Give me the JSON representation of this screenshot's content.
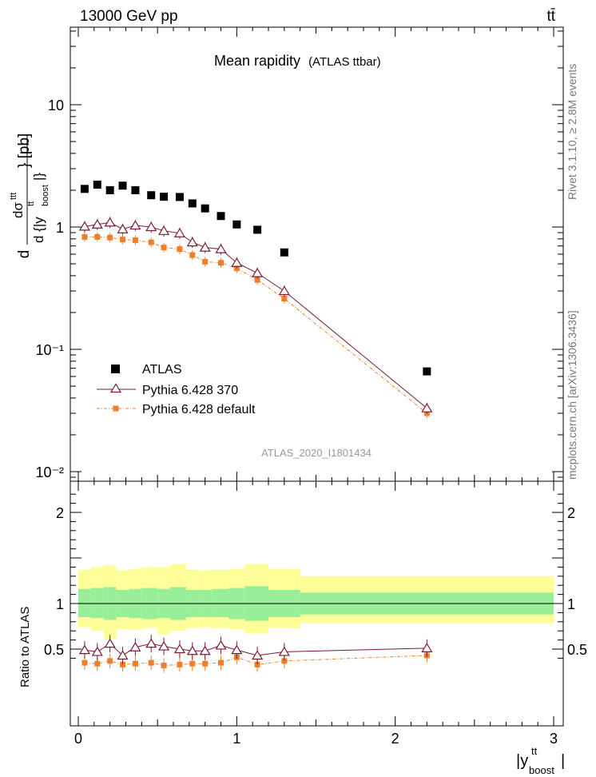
{
  "header": {
    "left": "13000 GeV pp",
    "right": "tt̄"
  },
  "side": {
    "rivet": "Rivet 3.1.10, ≥ 2.8M events",
    "mcplots": "mcplots.cern.ch [arXiv:1306.3436]"
  },
  "main": {
    "title": "Mean rapidity",
    "title_sub": "(ATLAS ttbar)",
    "ylabel": "d dσ^ttt / d{|y_boost^tt|} [pb]",
    "watermark": "ATLAS_2020_I1801434"
  },
  "ratio": {
    "ylabel": "Ratio to ATLAS"
  },
  "xlabel": "|y_boost^tt|",
  "legend": {
    "atlas": "ATLAS",
    "p370": "Pythia 6.428 370",
    "pdef": "Pythia 6.428 default"
  },
  "colors": {
    "data": "#000000",
    "p370": "#7a1b2e",
    "pdef": "#f07f2a",
    "band_inner": "#99ee99",
    "band_outer": "#ffff99"
  },
  "chart_data": {
    "type": "scatter",
    "xlim": [
      0,
      3
    ],
    "ylim_main": [
      0.008,
      50
    ],
    "yscale_main": "log",
    "ylim_ratio": [
      0.35,
      2.3
    ],
    "x_ticks": [
      "0",
      "1",
      "2",
      "3"
    ],
    "y_ticks_main": [
      "10⁻²",
      "10⁻¹",
      "1",
      "10"
    ],
    "y_ticks_ratio": [
      "0.5",
      "1",
      "2"
    ],
    "bins": [
      [
        0.0,
        0.08
      ],
      [
        0.08,
        0.16
      ],
      [
        0.16,
        0.24
      ],
      [
        0.24,
        0.32
      ],
      [
        0.32,
        0.4
      ],
      [
        0.4,
        0.5
      ],
      [
        0.5,
        0.58
      ],
      [
        0.58,
        0.68
      ],
      [
        0.68,
        0.76
      ],
      [
        0.76,
        0.84
      ],
      [
        0.84,
        0.95
      ],
      [
        0.95,
        1.05
      ],
      [
        1.05,
        1.2
      ],
      [
        1.2,
        1.4
      ],
      [
        1.4,
        3.0
      ]
    ],
    "x": [
      0.04,
      0.12,
      0.2,
      0.28,
      0.36,
      0.46,
      0.54,
      0.64,
      0.72,
      0.8,
      0.9,
      1.0,
      1.13,
      1.3,
      2.2
    ],
    "series": [
      {
        "name": "ATLAS",
        "values": [
          2.05,
          2.22,
          2.0,
          2.18,
          2.0,
          1.82,
          1.77,
          1.76,
          1.56,
          1.42,
          1.23,
          1.05,
          0.95,
          0.62,
          0.066
        ]
      },
      {
        "name": "Pythia 6.428 370",
        "values": [
          1.01,
          1.05,
          1.09,
          0.96,
          1.03,
          1.0,
          0.93,
          0.89,
          0.75,
          0.68,
          0.66,
          0.51,
          0.42,
          0.3,
          0.033
        ]
      },
      {
        "name": "Pythia 6.428 default",
        "values": [
          0.83,
          0.83,
          0.82,
          0.79,
          0.78,
          0.75,
          0.68,
          0.66,
          0.59,
          0.52,
          0.51,
          0.46,
          0.37,
          0.26,
          0.03
        ]
      }
    ],
    "ratio_series": [
      {
        "name": "Pythia 6.428 370",
        "values": [
          0.49,
          0.47,
          0.56,
          0.43,
          0.52,
          0.56,
          0.53,
          0.5,
          0.48,
          0.48,
          0.54,
          0.49,
          0.43,
          0.47,
          0.51
        ]
      },
      {
        "name": "Pythia 6.428 default",
        "values": [
          0.35,
          0.34,
          0.37,
          0.33,
          0.34,
          0.35,
          0.32,
          0.33,
          0.34,
          0.34,
          0.35,
          0.41,
          0.33,
          0.37,
          0.43
        ]
      }
    ],
    "ratio_band_inner": [
      [
        0.85,
        1.16
      ],
      [
        0.84,
        1.17
      ],
      [
        0.82,
        1.18
      ],
      [
        0.85,
        1.15
      ],
      [
        0.84,
        1.16
      ],
      [
        0.83,
        1.17
      ],
      [
        0.84,
        1.16
      ],
      [
        0.82,
        1.18
      ],
      [
        0.85,
        1.15
      ],
      [
        0.85,
        1.15
      ],
      [
        0.85,
        1.16
      ],
      [
        0.83,
        1.17
      ],
      [
        0.81,
        1.19
      ],
      [
        0.85,
        1.15
      ],
      [
        0.88,
        1.12
      ]
    ],
    "ratio_band_outer": [
      [
        0.74,
        1.37
      ],
      [
        0.7,
        1.4
      ],
      [
        0.61,
        1.42
      ],
      [
        0.72,
        1.36
      ],
      [
        0.71,
        1.38
      ],
      [
        0.73,
        1.4
      ],
      [
        0.66,
        1.4
      ],
      [
        0.7,
        1.43
      ],
      [
        0.73,
        1.37
      ],
      [
        0.74,
        1.36
      ],
      [
        0.73,
        1.37
      ],
      [
        0.72,
        1.38
      ],
      [
        0.67,
        1.43
      ],
      [
        0.73,
        1.38
      ],
      [
        0.78,
        1.3
      ]
    ],
    "legend_position": "left-middle"
  }
}
